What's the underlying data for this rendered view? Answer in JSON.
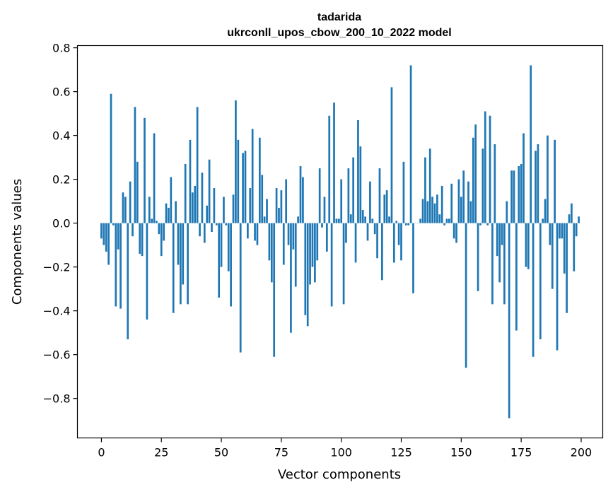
{
  "chart_data": {
    "type": "bar",
    "title": "tadarida",
    "subtitle": "ukrconll_upos_cbow_200_10_2022 model",
    "xlabel": "Vector components",
    "ylabel": "Components values",
    "xlim": [
      -10,
      209
    ],
    "ylim": [
      -0.98,
      0.81
    ],
    "xticks": [
      0,
      25,
      50,
      75,
      100,
      125,
      150,
      175,
      200
    ],
    "xtick_labels": [
      "0",
      "25",
      "50",
      "75",
      "100",
      "125",
      "150",
      "175",
      "200"
    ],
    "yticks": [
      0.8,
      0.6,
      0.4,
      0.2,
      0.0,
      -0.2,
      -0.4,
      -0.6,
      -0.8
    ],
    "ytick_labels": [
      "0.8",
      "0.6",
      "0.4",
      "0.2",
      "0.0",
      "−0.2",
      "−0.4",
      "−0.6",
      "−0.8"
    ],
    "bar_color": "#1f77b4",
    "x": [
      0,
      1,
      2,
      3,
      4,
      5,
      6,
      7,
      8,
      9,
      10,
      11,
      12,
      13,
      14,
      15,
      16,
      17,
      18,
      19,
      20,
      21,
      22,
      23,
      24,
      25,
      26,
      27,
      28,
      29,
      30,
      31,
      32,
      33,
      34,
      35,
      36,
      37,
      38,
      39,
      40,
      41,
      42,
      43,
      44,
      45,
      46,
      47,
      48,
      49,
      50,
      51,
      52,
      53,
      54,
      55,
      56,
      57,
      58,
      59,
      60,
      61,
      62,
      63,
      64,
      65,
      66,
      67,
      68,
      69,
      70,
      71,
      72,
      73,
      74,
      75,
      76,
      77,
      78,
      79,
      80,
      81,
      82,
      83,
      84,
      85,
      86,
      87,
      88,
      89,
      90,
      91,
      92,
      93,
      94,
      95,
      96,
      97,
      98,
      99,
      100,
      101,
      102,
      103,
      104,
      105,
      106,
      107,
      108,
      109,
      110,
      111,
      112,
      113,
      114,
      115,
      116,
      117,
      118,
      119,
      120,
      121,
      122,
      123,
      124,
      125,
      126,
      127,
      128,
      129,
      130,
      131,
      132,
      133,
      134,
      135,
      136,
      137,
      138,
      139,
      140,
      141,
      142,
      143,
      144,
      145,
      146,
      147,
      148,
      149,
      150,
      151,
      152,
      153,
      154,
      155,
      156,
      157,
      158,
      159,
      160,
      161,
      162,
      163,
      164,
      165,
      166,
      167,
      168,
      169,
      170,
      171,
      172,
      173,
      174,
      175,
      176,
      177,
      178,
      179,
      180,
      181,
      182,
      183,
      184,
      185,
      186,
      187,
      188,
      189,
      190,
      191,
      192,
      193,
      194,
      195,
      196,
      197,
      198,
      199
    ],
    "values": [
      -0.07,
      -0.1,
      -0.13,
      -0.19,
      0.59,
      -0.01,
      -0.38,
      -0.12,
      -0.39,
      0.14,
      0.12,
      -0.53,
      0.19,
      -0.06,
      0.53,
      0.28,
      -0.14,
      -0.15,
      0.48,
      -0.44,
      0.12,
      0.02,
      0.41,
      0.01,
      -0.05,
      -0.15,
      -0.08,
      0.09,
      0.07,
      0.21,
      -0.41,
      0.1,
      -0.19,
      -0.37,
      -0.28,
      0.27,
      -0.37,
      0.38,
      0.14,
      0.17,
      0.53,
      -0.06,
      0.23,
      -0.09,
      0.08,
      0.29,
      -0.04,
      0.16,
      -0.01,
      -0.34,
      -0.2,
      0.12,
      -0.01,
      -0.22,
      -0.38,
      0.13,
      0.56,
      0.38,
      -0.59,
      0.32,
      0.33,
      -0.07,
      0.16,
      0.43,
      -0.08,
      -0.1,
      0.39,
      0.22,
      0.03,
      0.11,
      -0.17,
      -0.27,
      -0.61,
      0.16,
      0.07,
      0.15,
      -0.19,
      0.2,
      -0.1,
      -0.5,
      -0.12,
      -0.29,
      0.03,
      0.26,
      0.21,
      -0.42,
      -0.47,
      -0.28,
      -0.2,
      -0.27,
      -0.17,
      0.25,
      -0.02,
      0.12,
      -0.13,
      0.49,
      -0.38,
      0.55,
      0.02,
      0.02,
      0.2,
      -0.37,
      -0.09,
      0.25,
      0.04,
      0.3,
      -0.18,
      0.47,
      0.35,
      0.06,
      0.03,
      -0.08,
      0.19,
      0.02,
      -0.05,
      -0.16,
      0.25,
      -0.26,
      0.13,
      0.15,
      0.03,
      0.62,
      -0.18,
      0.01,
      -0.1,
      -0.17,
      0.28,
      -0.01,
      -0.01,
      0.72,
      -0.32,
      0.0,
      0.0,
      0.02,
      0.11,
      0.3,
      0.1,
      0.34,
      0.12,
      0.09,
      0.13,
      0.04,
      0.17,
      -0.01,
      0.02,
      0.02,
      0.18,
      -0.07,
      -0.09,
      0.2,
      0.12,
      0.24,
      -0.66,
      0.19,
      0.1,
      0.39,
      0.45,
      -0.31,
      -0.01,
      0.34,
      0.51,
      -0.01,
      0.49,
      -0.37,
      0.36,
      -0.15,
      -0.27,
      -0.1,
      -0.37,
      0.1,
      -0.89,
      0.24,
      0.24,
      -0.49,
      0.26,
      0.27,
      0.41,
      -0.2,
      -0.21,
      0.72,
      -0.61,
      0.33,
      0.36,
      -0.53,
      0.02,
      0.11,
      0.4,
      -0.1,
      -0.3,
      0.38,
      -0.58,
      -0.07,
      -0.07,
      -0.23,
      -0.41,
      0.04,
      0.09,
      -0.22,
      -0.06,
      0.03
    ]
  }
}
